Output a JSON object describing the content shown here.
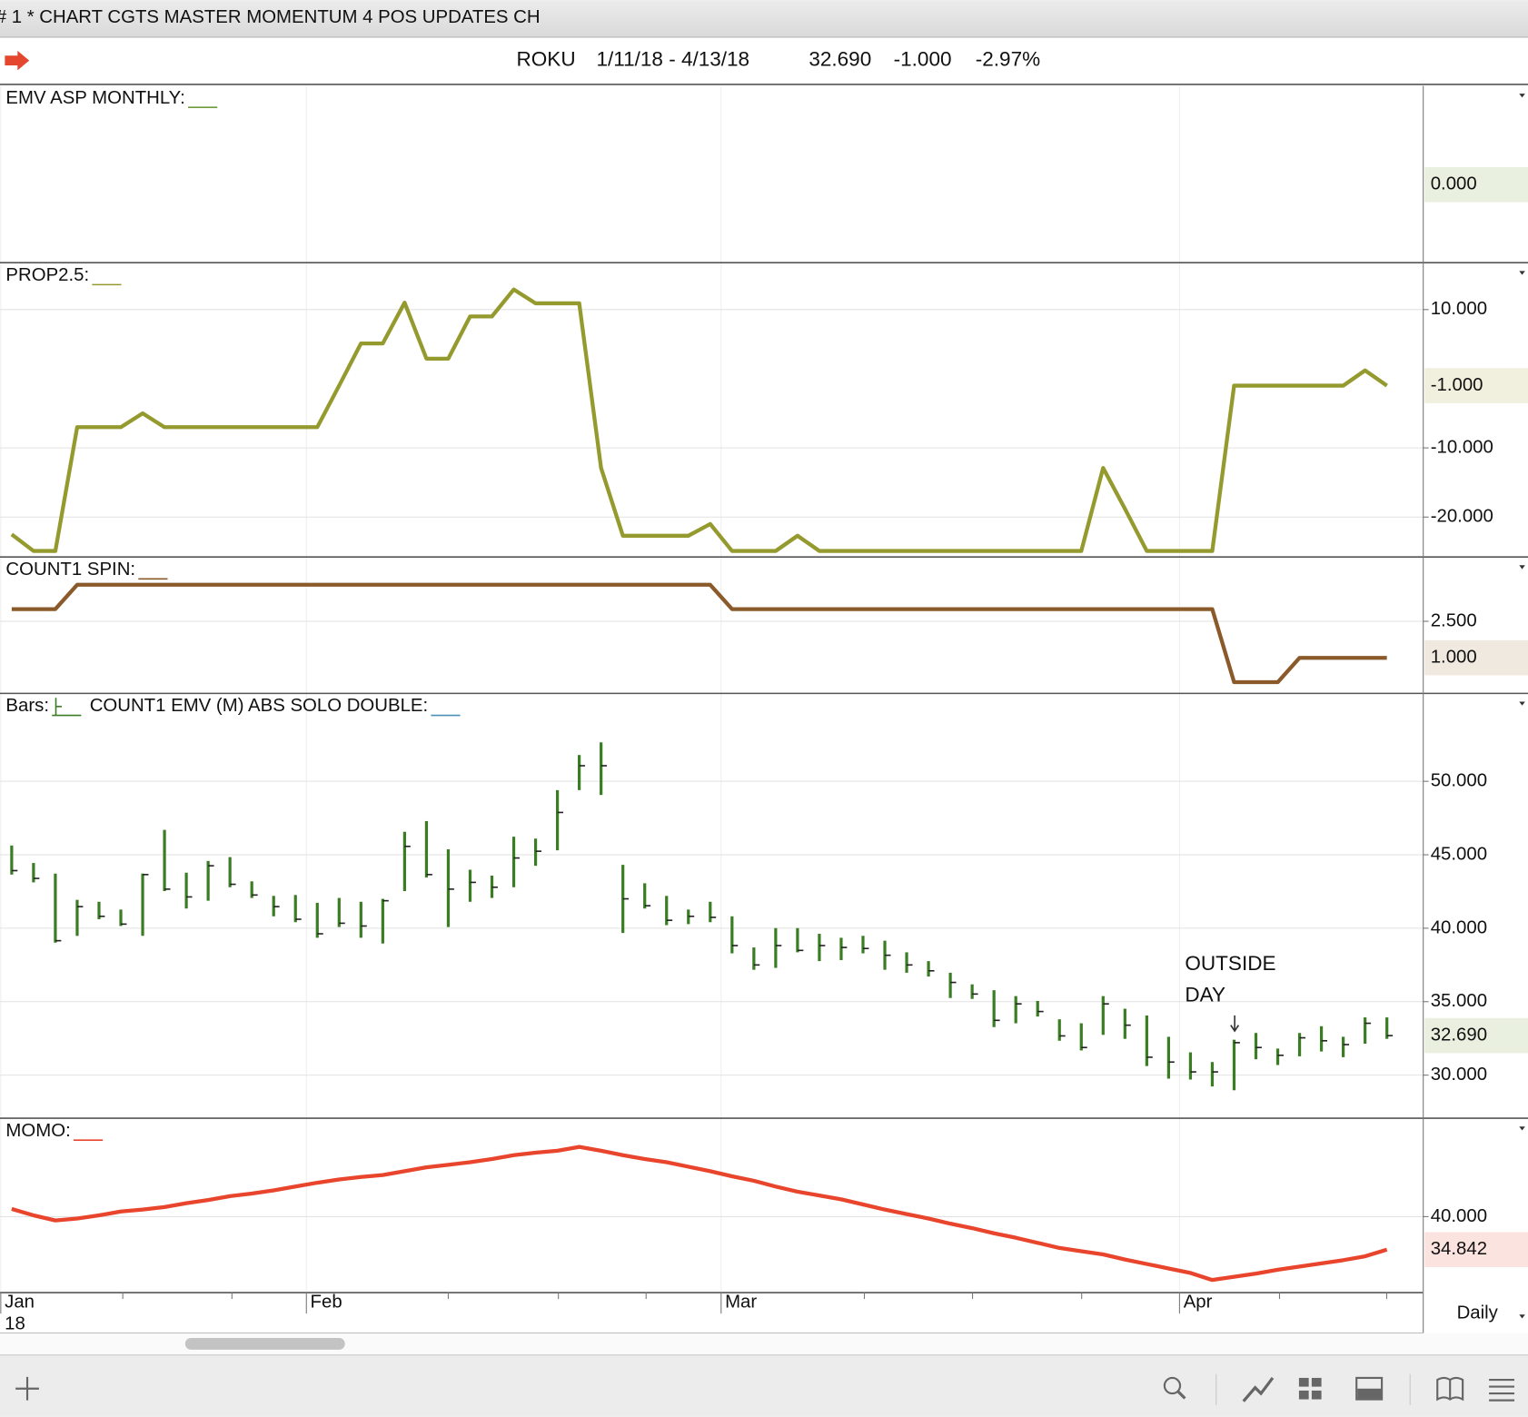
{
  "window": {
    "title": "# 1 * CHART CGTS MASTER MOMENTUM 4 POS UPDATES CH"
  },
  "quote": {
    "symbol": "ROKU",
    "range": "1/11/18 - 4/13/18",
    "last": "32.690",
    "change": "-1.000",
    "change_pct": "-2.97%"
  },
  "period": "Daily",
  "chart_data": [
    {
      "type": "line",
      "title": "EMV ASP MONTHLY:",
      "indicator_color": "#6f9b3c",
      "values": [],
      "ylim": [
        -0.88,
        1.12
      ],
      "yticks": [],
      "last_value": {
        "value": 0,
        "label": "0.000"
      },
      "last_color": "#3f6f1f",
      "last_bg": "#e9f0df"
    },
    {
      "type": "line",
      "title": "PROP2.5:",
      "indicator_color": "#959a2f",
      "color": "#959a2f",
      "values": [
        -22.5,
        -24.9,
        -24.9,
        -7,
        -7,
        -7,
        -5,
        -7,
        -7,
        -7,
        -7,
        -7,
        -7,
        -7,
        -7,
        -1,
        5.1,
        5.1,
        11,
        2.9,
        2.9,
        9,
        9,
        12.9,
        10.9,
        10.9,
        10.9,
        -12.9,
        -22.7,
        -22.7,
        -22.7,
        -22.7,
        -21,
        -24.9,
        -24.9,
        -24.9,
        -22.7,
        -24.9,
        -24.9,
        -24.9,
        -24.9,
        -24.9,
        -24.9,
        -24.9,
        -24.9,
        -24.9,
        -24.9,
        -24.9,
        -24.9,
        -24.9,
        -12.9,
        -18.8,
        -24.9,
        -24.9,
        -24.9,
        -24.9,
        -1,
        -1,
        -1,
        -1,
        -1,
        -1,
        1.2,
        -1
      ],
      "ylim": [
        -25.7,
        16.7
      ],
      "yticks": [
        {
          "value": 10,
          "label": "10.000"
        },
        {
          "value": -10,
          "label": "-10.000"
        },
        {
          "value": -20,
          "label": "-20.000"
        }
      ],
      "last_value": {
        "value": -1,
        "label": "-1.000"
      },
      "last_color": "#6d6d1f",
      "last_bg": "#f1f0de"
    },
    {
      "type": "line",
      "title": "COUNT1 SPIN:",
      "indicator_color": "#8b5a2b",
      "color": "#8b5a2b",
      "values": [
        3,
        3,
        3,
        4,
        4,
        4,
        4,
        4,
        4,
        4,
        4,
        4,
        4,
        4,
        4,
        4,
        4,
        4,
        4,
        4,
        4,
        4,
        4,
        4,
        4,
        4,
        4,
        4,
        4,
        4,
        4,
        4,
        4,
        3,
        3,
        3,
        3,
        3,
        3,
        3,
        3,
        3,
        3,
        3,
        3,
        3,
        3,
        3,
        3,
        3,
        3,
        3,
        3,
        3,
        3,
        3,
        0,
        0,
        0,
        1,
        1,
        1,
        1,
        1
      ],
      "ylim": [
        -0.44,
        5.12
      ],
      "yticks": [
        {
          "value": 2.5,
          "label": "2.500"
        }
      ],
      "last_value": {
        "value": 1,
        "label": "1.000"
      },
      "last_color": "#5e3d1c",
      "last_bg": "#f0e9e0"
    },
    {
      "type": "hlc",
      "title": "Bars:",
      "subtitle": "COUNT1 EMV (M) ABS SOLO DOUBLE:",
      "indicator_color": "#3b7d24",
      "subtitle_color": "#4a8fb5",
      "color": "#3b7d24",
      "high": [
        45.63,
        44.44,
        43.72,
        41.93,
        41.8,
        41.27,
        43.72,
        46.69,
        43.78,
        44.58,
        44.84,
        43.19,
        42.2,
        42.26,
        41.73,
        42.06,
        41.8,
        42.0,
        46.56,
        47.29,
        45.37,
        43.98,
        43.58,
        46.23,
        46.1,
        49.4,
        51.79,
        52.65,
        44.31,
        43.06,
        42.2,
        41.27,
        41.8,
        40.81,
        38.69,
        40.01,
        40.01,
        39.62,
        39.35,
        39.48,
        39.15,
        38.36,
        37.76,
        36.97,
        36.18,
        35.78,
        35.38,
        35.05,
        33.8,
        33.53,
        35.38,
        34.52,
        34.06,
        32.61,
        31.55,
        30.89,
        32.41,
        32.87,
        31.81,
        32.87,
        33.33,
        32.61,
        33.93,
        33.93
      ],
      "low": [
        43.65,
        43.12,
        39.02,
        39.48,
        40.61,
        40.15,
        39.48,
        42.53,
        41.34,
        41.87,
        42.79,
        42.06,
        40.81,
        40.41,
        39.35,
        40.08,
        39.35,
        38.96,
        42.53,
        43.45,
        40.08,
        41.8,
        42.06,
        42.79,
        44.25,
        45.3,
        49.4,
        49.07,
        39.68,
        41.34,
        40.21,
        40.28,
        40.41,
        38.29,
        37.17,
        37.3,
        38.36,
        37.76,
        37.83,
        38.29,
        37.17,
        36.97,
        36.71,
        35.25,
        35.19,
        33.27,
        33.53,
        33.99,
        32.34,
        31.68,
        32.74,
        32.47,
        30.62,
        29.76,
        29.7,
        29.23,
        28.97,
        31.08,
        30.69,
        31.28,
        31.61,
        31.22,
        32.14,
        32.47
      ],
      "close": [
        43.92,
        43.39,
        39.15,
        41.47,
        40.81,
        40.28,
        43.65,
        42.66,
        42.13,
        44.25,
        42.99,
        42.26,
        41.47,
        40.61,
        39.62,
        40.34,
        40.15,
        41.87,
        45.57,
        43.65,
        42.66,
        43.12,
        42.79,
        44.78,
        45.24,
        47.88,
        51.06,
        51.06,
        42.0,
        41.53,
        40.54,
        40.81,
        40.74,
        38.82,
        37.5,
        38.82,
        38.49,
        38.82,
        38.69,
        38.62,
        38.16,
        37.5,
        37.1,
        36.31,
        35.52,
        33.73,
        34.85,
        34.33,
        32.67,
        31.88,
        34.85,
        33.4,
        31.22,
        30.89,
        30.22,
        30.22,
        32.21,
        31.88,
        31.35,
        32.54,
        32.34,
        32.08,
        33.53,
        32.69
      ],
      "ylim": [
        27.1,
        55.95
      ],
      "yticks": [
        {
          "value": 50,
          "label": "50.000"
        },
        {
          "value": 45,
          "label": "45.000"
        },
        {
          "value": 40,
          "label": "40.000"
        },
        {
          "value": 35,
          "label": "35.000"
        },
        {
          "value": 30,
          "label": "30.000"
        }
      ],
      "last_value": {
        "value": 32.69,
        "label": "32.690"
      },
      "last_color": "#3f6f1f",
      "last_bg": "#e9f0df",
      "annotation": [
        "OUTSIDE",
        "DAY"
      ]
    },
    {
      "type": "line",
      "title": "MOMO:",
      "indicator_color": "#e8452c",
      "color": "#e8452c",
      "values": [
        41.2,
        40.2,
        39.4,
        39.7,
        40.2,
        40.8,
        41.1,
        41.5,
        42.1,
        42.6,
        43.2,
        43.6,
        44.1,
        44.7,
        45.3,
        45.8,
        46.2,
        46.5,
        47.1,
        47.7,
        48.1,
        48.5,
        49.0,
        49.6,
        50.0,
        50.3,
        50.9,
        50.3,
        49.6,
        49.0,
        48.5,
        47.8,
        47.1,
        46.3,
        45.6,
        44.7,
        43.9,
        43.3,
        42.7,
        41.9,
        41.1,
        40.4,
        39.7,
        38.9,
        38.2,
        37.4,
        36.7,
        35.9,
        35.1,
        34.6,
        34.1,
        33.3,
        32.6,
        31.9,
        31.2,
        30.1,
        30.6,
        31.1,
        31.7,
        32.2,
        32.7,
        33.2,
        33.8,
        34.842
      ],
      "ylim": [
        28.2,
        55.3
      ],
      "yticks": [
        {
          "value": 40,
          "label": "40.000"
        }
      ],
      "last_value": {
        "value": 34.842,
        "label": "34.842"
      },
      "last_color": "#c0392b",
      "last_bg": "#fbe3e0",
      "categories": [
        "Jan",
        null,
        null,
        null,
        null,
        null,
        null,
        null,
        null,
        null,
        null,
        null,
        null,
        null,
        "Feb",
        null,
        null,
        null,
        null,
        null,
        null,
        null,
        null,
        null,
        null,
        null,
        null,
        null,
        null,
        null,
        null,
        null,
        null,
        "Mar",
        null,
        null,
        null,
        null,
        null,
        null,
        null,
        null,
        null,
        null,
        null,
        null,
        null,
        null,
        null,
        null,
        null,
        null,
        null,
        null,
        "Apr",
        null,
        null,
        null,
        null,
        null,
        null,
        null,
        null,
        null
      ],
      "year_label": "18"
    }
  ]
}
